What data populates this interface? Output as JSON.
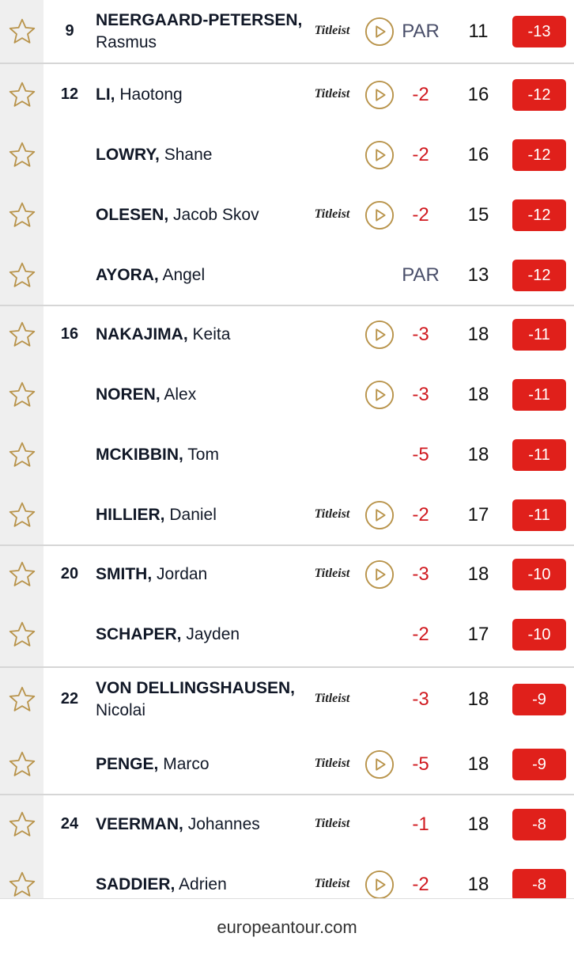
{
  "rows": [
    {
      "pos": "9",
      "last": "NEERGAARD-PETERSEN,",
      "first": "Rasmus",
      "sponsor": "Titleist",
      "video": true,
      "today": "PAR",
      "thru": "11",
      "total": "-13"
    },
    {
      "pos": "12",
      "last": "LI,",
      "first": "Haotong",
      "sponsor": "Titleist",
      "video": true,
      "today": "-2",
      "thru": "16",
      "total": "-12"
    },
    {
      "last": "LOWRY,",
      "first": "Shane",
      "video": true,
      "today": "-2",
      "thru": "16",
      "total": "-12"
    },
    {
      "last": "OLESEN,",
      "first": "Jacob Skov",
      "sponsor": "Titleist",
      "video": true,
      "today": "-2",
      "thru": "15",
      "total": "-12"
    },
    {
      "last": "AYORA,",
      "first": "Angel",
      "video": false,
      "today": "PAR",
      "thru": "13",
      "total": "-12"
    },
    {
      "pos": "16",
      "last": "NAKAJIMA,",
      "first": "Keita",
      "video": true,
      "today": "-3",
      "thru": "18",
      "total": "-11"
    },
    {
      "last": "NOREN,",
      "first": "Alex",
      "video": true,
      "today": "-3",
      "thru": "18",
      "total": "-11"
    },
    {
      "last": "MCKIBBIN,",
      "first": "Tom",
      "video": false,
      "today": "-5",
      "thru": "18",
      "total": "-11"
    },
    {
      "last": "HILLIER,",
      "first": "Daniel",
      "sponsor": "Titleist",
      "video": true,
      "today": "-2",
      "thru": "17",
      "total": "-11"
    },
    {
      "pos": "20",
      "last": "SMITH,",
      "first": "Jordan",
      "sponsor": "Titleist",
      "video": true,
      "today": "-3",
      "thru": "18",
      "total": "-10"
    },
    {
      "last": "SCHAPER,",
      "first": "Jayden",
      "video": false,
      "today": "-2",
      "thru": "17",
      "total": "-10"
    },
    {
      "pos": "22",
      "last": "VON DELLINGSHAUSEN,",
      "first": "Nicolai",
      "sponsor": "Titleist",
      "video": false,
      "today": "-3",
      "thru": "18",
      "total": "-9"
    },
    {
      "last": "PENGE,",
      "first": "Marco",
      "sponsor": "Titleist",
      "video": true,
      "today": "-5",
      "thru": "18",
      "total": "-9"
    },
    {
      "pos": "24",
      "last": "VEERMAN,",
      "first": "Johannes",
      "sponsor": "Titleist",
      "video": false,
      "today": "-1",
      "thru": "18",
      "total": "-8"
    },
    {
      "last": "SADDIER,",
      "first": "Adrien",
      "sponsor": "Titleist",
      "video": true,
      "today": "-2",
      "thru": "18",
      "total": "-8"
    }
  ],
  "footer": "europeantour.com"
}
